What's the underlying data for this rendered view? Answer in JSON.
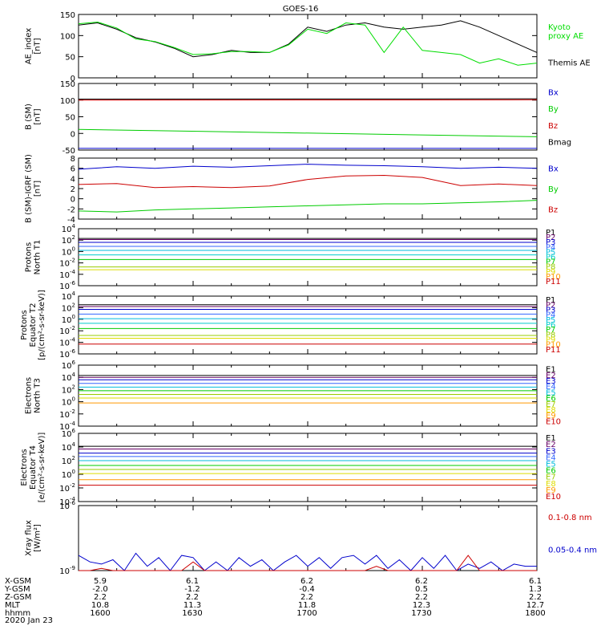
{
  "title": "GOES-16",
  "date": "2020 Jan 23",
  "colors": {
    "axes": "#000000",
    "black": "#000000",
    "blue": "#0000cc",
    "green": "#00cc00",
    "red": "#cc0000",
    "ae_black": "#000000",
    "ae_green": "#00dd00"
  },
  "chart_data": [
    {
      "id": "ae",
      "type": "line",
      "ylabel": "AE_index\n[nT]",
      "ylim": [
        0,
        150
      ],
      "yticks": [
        "0",
        "50",
        "100",
        "150"
      ],
      "x": [
        1600,
        1605,
        1610,
        1615,
        1620,
        1625,
        1630,
        1635,
        1640,
        1645,
        1650,
        1655,
        1700,
        1705,
        1710,
        1715,
        1720,
        1725,
        1730,
        1735,
        1740,
        1745,
        1750,
        1755,
        1800
      ],
      "series": [
        {
          "name": "Themis AE",
          "color": "#000000",
          "values": [
            125,
            130,
            115,
            95,
            85,
            70,
            50,
            55,
            65,
            60,
            60,
            80,
            120,
            110,
            125,
            130,
            120,
            115,
            120,
            125,
            135,
            120,
            100,
            80,
            60
          ]
        },
        {
          "name": "Kyoto proxy AE",
          "color": "#00dd00",
          "values": [
            128,
            132,
            118,
            92,
            86,
            72,
            55,
            57,
            62,
            62,
            60,
            78,
            115,
            105,
            130,
            125,
            60,
            120,
            65,
            60,
            55,
            35,
            45,
            30,
            35
          ]
        }
      ],
      "legend_labels": [
        {
          "text": "Kyoto\nproxy AE",
          "color": "#00dd00"
        },
        {
          "text": "Themis AE",
          "color": "#000000"
        }
      ]
    },
    {
      "id": "bsm",
      "type": "line",
      "ylabel": "B (SM)\n[nT]",
      "ylim": [
        -50,
        150
      ],
      "yticks": [
        "-50",
        "0",
        "50",
        "100",
        "150"
      ],
      "x": [
        1600,
        1800
      ],
      "series": [
        {
          "name": "Bmag",
          "color": "#000000",
          "values": [
            103,
            104
          ]
        },
        {
          "name": "Bz",
          "color": "#cc0000",
          "values": [
            100,
            101
          ]
        },
        {
          "name": "By",
          "color": "#00cc00",
          "values": [
            12,
            -10
          ]
        },
        {
          "name": "Bx",
          "color": "#0000cc",
          "values": [
            -45,
            -45
          ]
        }
      ],
      "legend_labels": [
        {
          "text": "Bx",
          "color": "#0000cc"
        },
        {
          "text": "By",
          "color": "#00cc00"
        },
        {
          "text": "Bz",
          "color": "#cc0000"
        },
        {
          "text": "Bmag",
          "color": "#000000"
        }
      ]
    },
    {
      "id": "bigrf",
      "type": "line",
      "ylabel": "B (SM)-IGRF (SM)\n[nT]",
      "ylim": [
        -4,
        8
      ],
      "yticks": [
        "-4",
        "-2",
        "0",
        "2",
        "4",
        "6",
        "8"
      ],
      "x": [
        1600,
        1610,
        1620,
        1630,
        1640,
        1650,
        1700,
        1710,
        1720,
        1730,
        1740,
        1750,
        1800
      ],
      "series": [
        {
          "name": "Bx",
          "color": "#0000cc",
          "values": [
            5.8,
            6.3,
            6.0,
            6.4,
            6.2,
            6.5,
            6.8,
            6.6,
            6.5,
            6.3,
            6.0,
            6.2,
            6.0
          ]
        },
        {
          "name": "Bz",
          "color": "#cc0000",
          "values": [
            2.8,
            3.0,
            2.2,
            2.4,
            2.2,
            2.5,
            3.8,
            4.5,
            4.6,
            4.2,
            2.6,
            2.9,
            2.6
          ]
        },
        {
          "name": "By",
          "color": "#00cc00",
          "values": [
            -2.4,
            -2.6,
            -2.2,
            -2.0,
            -1.8,
            -1.6,
            -1.4,
            -1.2,
            -1.0,
            -1.0,
            -0.8,
            -0.6,
            -0.3
          ]
        }
      ],
      "legend_labels": [
        {
          "text": "Bx",
          "color": "#0000cc"
        },
        {
          "text": "By",
          "color": "#00cc00"
        },
        {
          "text": "Bz",
          "color": "#cc0000"
        }
      ]
    },
    {
      "id": "pt1",
      "type": "line",
      "ylabel": "Protons\nNorth T1",
      "ylim_log": [
        -6,
        4
      ],
      "yticks": [
        "10^-6",
        "10^-4",
        "10^-2",
        "10^0",
        "10^2",
        "10^4"
      ],
      "channels": [
        {
          "name": "P1",
          "color": "#000000",
          "value": 2.3
        },
        {
          "name": "P2",
          "color": "#660066",
          "value": 2.1
        },
        {
          "name": "P3",
          "color": "#0000cc",
          "value": 1.6
        },
        {
          "name": "P4",
          "color": "#3366ff",
          "value": 0.9
        },
        {
          "name": "P5",
          "color": "#00bbdd",
          "value": 0.2
        },
        {
          "name": "P6",
          "color": "#00cccc",
          "value": -0.6
        },
        {
          "name": "P7",
          "color": "#00cc00",
          "value": -1.4
        },
        {
          "name": "P8",
          "color": "#99cc00",
          "value": -2.7
        },
        {
          "name": "P9",
          "color": "#dddd00",
          "value": -3.2
        },
        {
          "name": "P10",
          "color": "#ff9900",
          "value": null
        },
        {
          "name": "P11",
          "color": "#cc0000",
          "value": null
        }
      ]
    },
    {
      "id": "pt2",
      "type": "line",
      "ylabel": "Protons\nEquator T2\n[p/(cm²-s-sr-keV)]",
      "ylim_log": [
        -6,
        4
      ],
      "yticks": [
        "10^-6",
        "10^-4",
        "10^-2",
        "10^0",
        "10^2",
        "10^4"
      ],
      "channels": [
        {
          "name": "P1",
          "color": "#000000",
          "value": 2.5
        },
        {
          "name": "P2",
          "color": "#660066",
          "value": 2.2
        },
        {
          "name": "P3",
          "color": "#0000cc",
          "value": 1.7
        },
        {
          "name": "P4",
          "color": "#3366ff",
          "value": 0.9
        },
        {
          "name": "P5",
          "color": "#00bbdd",
          "value": 0.1
        },
        {
          "name": "P6",
          "color": "#00cccc",
          "value": -0.7
        },
        {
          "name": "P7",
          "color": "#00cc00",
          "value": -1.6
        },
        {
          "name": "P8",
          "color": "#99cc00",
          "value": -2.8
        },
        {
          "name": "P9",
          "color": "#dddd00",
          "value": -3.3
        },
        {
          "name": "P10",
          "color": "#ff9900",
          "value": null
        },
        {
          "name": "P11",
          "color": "#cc0000",
          "value": -4.3
        }
      ]
    },
    {
      "id": "et3",
      "type": "line",
      "ylabel": "Electrons\nNorth T3",
      "ylim_log": [
        -4,
        6
      ],
      "yticks": [
        "10^-4",
        "10^-2",
        "10^0",
        "10^2",
        "10^4",
        "10^6"
      ],
      "channels": [
        {
          "name": "E1",
          "color": "#000000",
          "value": 4.3
        },
        {
          "name": "E2",
          "color": "#660066",
          "value": 4.0
        },
        {
          "name": "E3",
          "color": "#0000cc",
          "value": 3.6
        },
        {
          "name": "E4",
          "color": "#3366ff",
          "value": 3.0
        },
        {
          "name": "E5",
          "color": "#00bbdd",
          "value": 2.4
        },
        {
          "name": "E6",
          "color": "#00cc00",
          "value": 1.8
        },
        {
          "name": "E7",
          "color": "#99cc00",
          "value": 1.2
        },
        {
          "name": "E8",
          "color": "#dddd00",
          "value": 0.6
        },
        {
          "name": "E9",
          "color": "#ff9900",
          "value": -0.2
        },
        {
          "name": "E10",
          "color": "#cc0000",
          "value": null
        }
      ]
    },
    {
      "id": "et4",
      "type": "line",
      "ylabel": "Electrons\nEquator T4\n[e/(cm²-s-sr-keV)]",
      "ylim_log": [
        -4,
        6
      ],
      "yticks": [
        "10^-4",
        "10^-2",
        "10^0",
        "10^2",
        "10^4",
        "10^6"
      ],
      "channels": [
        {
          "name": "E1",
          "color": "#000000",
          "value": 4.1
        },
        {
          "name": "E2",
          "color": "#660066",
          "value": 3.7
        },
        {
          "name": "E3",
          "color": "#0000cc",
          "value": 3.1
        },
        {
          "name": "E4",
          "color": "#3366ff",
          "value": 2.6
        },
        {
          "name": "E5",
          "color": "#00bbdd",
          "value": 2.0
        },
        {
          "name": "E6",
          "color": "#00cc00",
          "value": 1.3
        },
        {
          "name": "E7",
          "color": "#99cc00",
          "value": 0.7
        },
        {
          "name": "E8",
          "color": "#dddd00",
          "value": 0.1
        },
        {
          "name": "E9",
          "color": "#ff9900",
          "value": -0.8
        },
        {
          "name": "E10",
          "color": "#cc0000",
          "value": -1.6
        }
      ]
    },
    {
      "id": "xray",
      "type": "line",
      "ylabel": "Xray flux\n[W/m²]",
      "ylim_log": [
        -9,
        -6
      ],
      "yticks": [
        "10^-9",
        "10^-6"
      ],
      "x": [
        1600,
        1603,
        1606,
        1609,
        1612,
        1615,
        1618,
        1621,
        1624,
        1627,
        1630,
        1633,
        1636,
        1639,
        1642,
        1645,
        1648,
        1651,
        1654,
        1657,
        1700,
        1703,
        1706,
        1709,
        1712,
        1715,
        1718,
        1721,
        1724,
        1727,
        1730,
        1733,
        1736,
        1739,
        1742,
        1745,
        1748,
        1751,
        1754,
        1757,
        1800
      ],
      "series": [
        {
          "name": "0.05-0.4 nm",
          "color": "#0000cc",
          "values": [
            -8.3,
            -8.6,
            -8.7,
            -8.5,
            -9.0,
            -8.2,
            -8.8,
            -8.4,
            -9.0,
            -8.3,
            -8.4,
            -9.0,
            -8.6,
            -9.0,
            -8.4,
            -8.8,
            -8.5,
            -9.0,
            -8.6,
            -8.3,
            -8.8,
            -8.4,
            -8.9,
            -8.4,
            -8.3,
            -8.7,
            -8.3,
            -8.9,
            -8.5,
            -9.0,
            -8.4,
            -8.9,
            -8.3,
            -9.0,
            -8.7,
            -8.9,
            -8.6,
            -9.0,
            -8.7,
            -8.8,
            -8.8
          ]
        },
        {
          "name": "0.1-0.8 nm",
          "color": "#cc0000",
          "values": [
            -9.0,
            -9.0,
            -8.9,
            -9.0,
            -9.0,
            -9.0,
            -9.0,
            -9.0,
            -9.0,
            -9.0,
            -8.6,
            -9.0,
            -9.0,
            -9.0,
            -9.0,
            -9.0,
            -9.0,
            -9.0,
            -9.0,
            -9.0,
            -9.0,
            -9.0,
            -9.0,
            -9.0,
            -9.0,
            -9.0,
            -8.8,
            -9.0,
            -9.0,
            -9.0,
            -9.0,
            -9.0,
            -9.0,
            -9.0,
            -8.3,
            -9.0,
            -9.0,
            -9.0,
            -9.0,
            -9.0,
            -9.0
          ]
        }
      ],
      "legend_labels": [
        {
          "text": "0.1-0.8 nm",
          "color": "#cc0000"
        },
        {
          "text": "0.05-0.4 nm",
          "color": "#0000cc"
        }
      ]
    }
  ],
  "footer": {
    "rows": [
      {
        "label": "X-GSM",
        "values": [
          "5.9",
          "6.1",
          "6.2",
          "6.2",
          "6.1"
        ]
      },
      {
        "label": "Y-GSM",
        "values": [
          "-2.0",
          "-1.2",
          "-0.4",
          "0.5",
          "1.3"
        ]
      },
      {
        "label": "Z-GSM",
        "values": [
          "2.2",
          "2.2",
          "2.2",
          "2.2",
          "2.2"
        ]
      },
      {
        "label": "MLT",
        "values": [
          "10.8",
          "11.3",
          "11.8",
          "12.3",
          "12.7"
        ]
      },
      {
        "label": "hhmm",
        "values": [
          "1600",
          "1630",
          "1700",
          "1730",
          "1800"
        ]
      }
    ]
  }
}
